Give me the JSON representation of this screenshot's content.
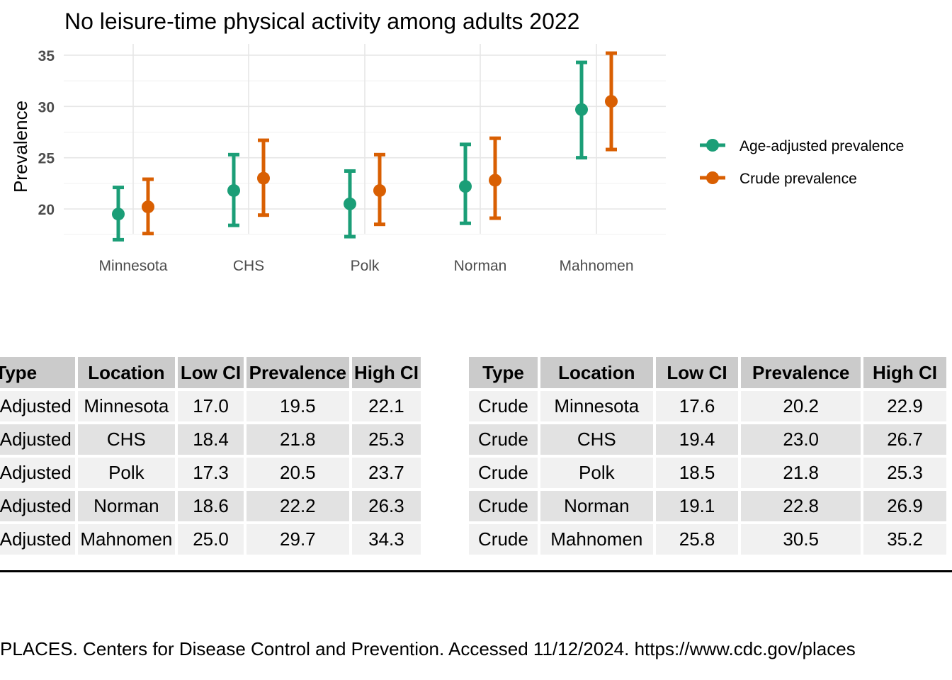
{
  "chart_data": {
    "type": "errorbar",
    "title": "No leisure-time physical activity among adults 2022",
    "ylabel": "Prevalence",
    "xlabel": "",
    "categories": [
      "Minnesota",
      "CHS",
      "Polk",
      "Norman",
      "Mahnomen"
    ],
    "yticks": [
      20,
      25,
      30,
      35
    ],
    "ylim": [
      16.5,
      35.8
    ],
    "grid": true,
    "legend_position": "right",
    "series": [
      {
        "name": "Age-adjusted prevalence",
        "color": "#1b9e77",
        "values": [
          19.5,
          21.8,
          20.5,
          22.2,
          29.7
        ],
        "low": [
          17.0,
          18.4,
          17.3,
          18.6,
          25.0
        ],
        "high": [
          22.1,
          25.3,
          23.7,
          26.3,
          34.3
        ]
      },
      {
        "name": "Crude prevalence",
        "color": "#d95f02",
        "values": [
          20.2,
          23.0,
          21.8,
          22.8,
          30.5
        ],
        "low": [
          17.6,
          19.4,
          18.5,
          19.1,
          25.8
        ],
        "high": [
          22.9,
          26.7,
          25.3,
          26.9,
          35.2
        ]
      }
    ]
  },
  "table_left": {
    "headers": [
      "Type",
      "Location",
      "Low CI",
      "Prevalence",
      "High CI"
    ],
    "rows": [
      [
        "Age-Adjusted",
        "Minnesota",
        "17.0",
        "19.5",
        "22.1"
      ],
      [
        "Age-Adjusted",
        "CHS",
        "18.4",
        "21.8",
        "25.3"
      ],
      [
        "Age-Adjusted",
        "Polk",
        "17.3",
        "20.5",
        "23.7"
      ],
      [
        "Age-Adjusted",
        "Norman",
        "18.6",
        "22.2",
        "26.3"
      ],
      [
        "Age-Adjusted",
        "Mahnomen",
        "25.0",
        "29.7",
        "34.3"
      ]
    ]
  },
  "table_right": {
    "headers": [
      "Type",
      "Location",
      "Low CI",
      "Prevalence",
      "High CI"
    ],
    "rows": [
      [
        "Crude",
        "Minnesota",
        "17.6",
        "20.2",
        "22.9"
      ],
      [
        "Crude",
        "CHS",
        "19.4",
        "23.0",
        "26.7"
      ],
      [
        "Crude",
        "Polk",
        "18.5",
        "21.8",
        "25.3"
      ],
      [
        "Crude",
        "Norman",
        "19.1",
        "22.8",
        "26.9"
      ],
      [
        "Crude",
        "Mahnomen",
        "25.8",
        "30.5",
        "35.2"
      ]
    ]
  },
  "caption": "PLACES. Centers for Disease Control and Prevention. Accessed 11/12/2024. https://www.cdc.gov/places"
}
